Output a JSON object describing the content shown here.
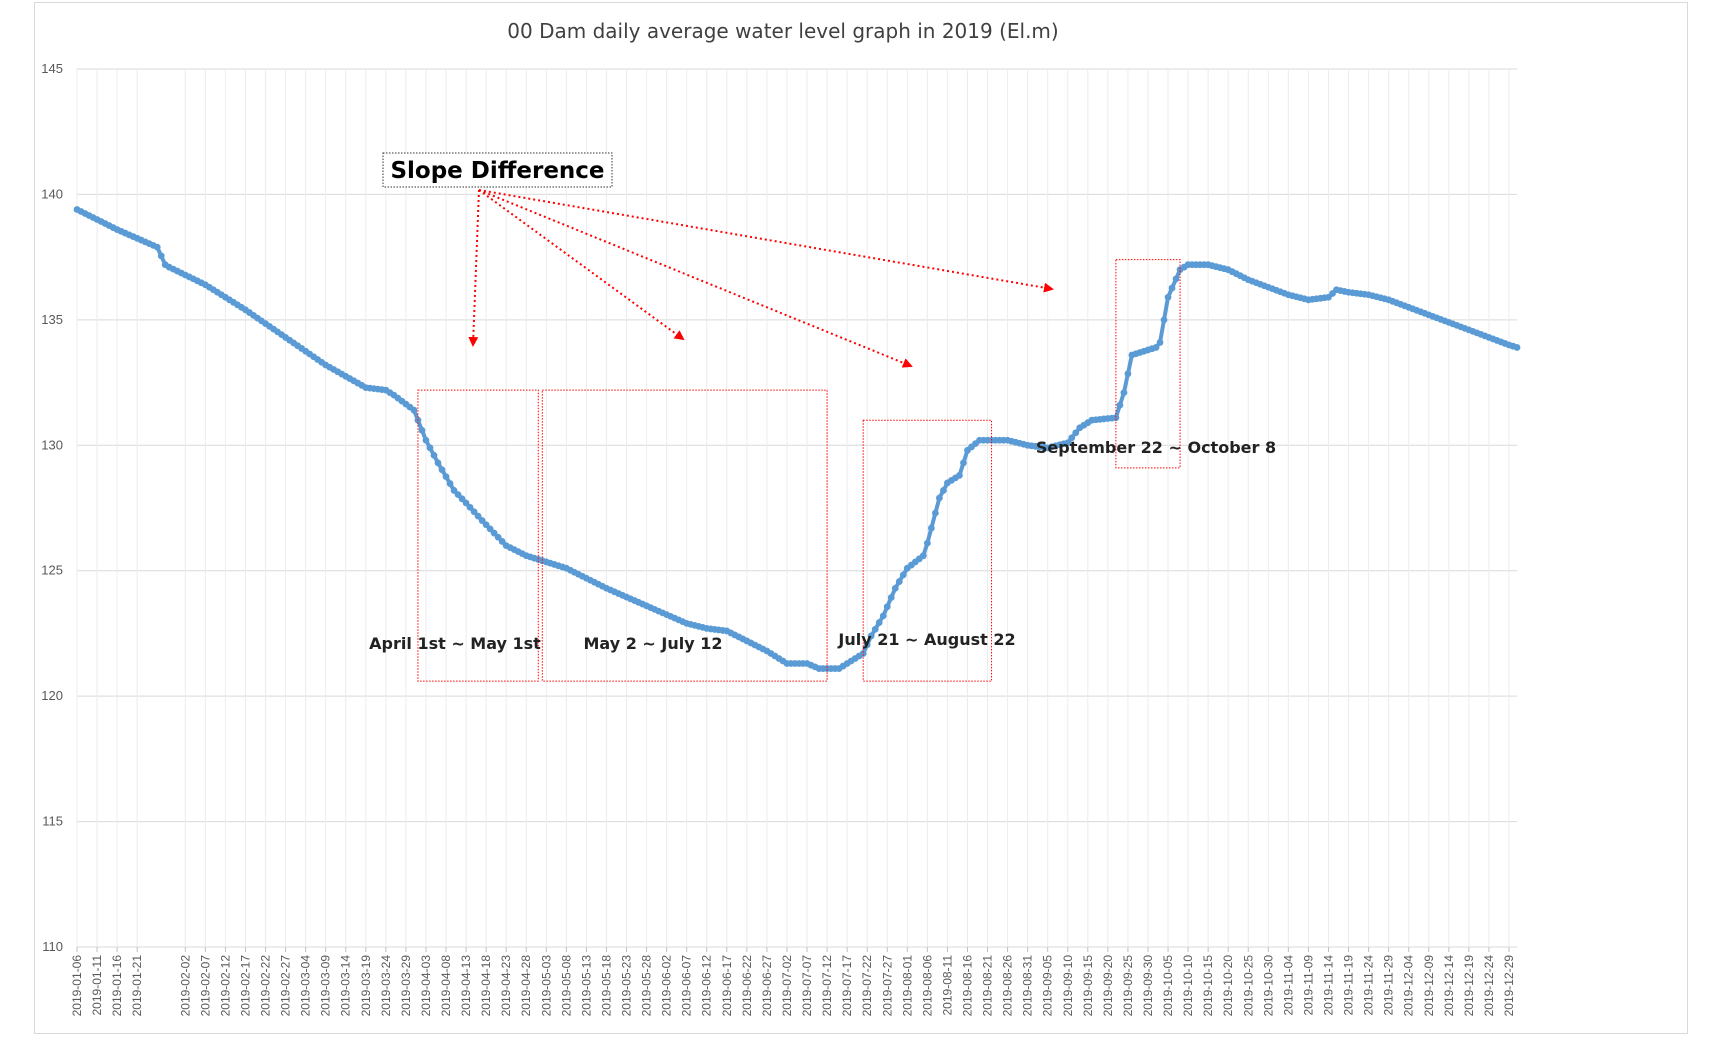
{
  "chart_data": {
    "type": "line",
    "title": "00 Dam daily average water level graph in 2019 (El.m)",
    "xlabel": "",
    "ylabel": "",
    "ylim": [
      110,
      145
    ],
    "yticks": [
      110,
      115,
      120,
      125,
      130,
      135,
      140,
      145
    ],
    "grid": "horizontal",
    "legend": "none",
    "line_color": "#5b9bd5",
    "annotation_color": "#ff0000",
    "xticks": [
      "2019-01-06",
      "2019-01-11",
      "2019-01-16",
      "2019-01-21",
      "2019-02-02",
      "2019-02-07",
      "2019-02-12",
      "2019-02-17",
      "2019-02-22",
      "2019-02-27",
      "2019-03-04",
      "2019-03-09",
      "2019-03-14",
      "2019-03-19",
      "2019-03-24",
      "2019-03-29",
      "2019-04-03",
      "2019-04-08",
      "2019-04-13",
      "2019-04-18",
      "2019-04-23",
      "2019-04-28",
      "2019-05-03",
      "2019-05-08",
      "2019-05-13",
      "2019-05-18",
      "2019-05-23",
      "2019-05-28",
      "2019-06-02",
      "2019-06-07",
      "2019-06-12",
      "2019-06-17",
      "2019-06-22",
      "2019-06-27",
      "2019-07-02",
      "2019-07-07",
      "2019-07-12",
      "2019-07-17",
      "2019-07-22",
      "2019-07-27",
      "2019-08-01",
      "2019-08-06",
      "2019-08-11",
      "2019-08-16",
      "2019-08-21",
      "2019-08-26",
      "2019-08-31",
      "2019-09-05",
      "2019-09-10",
      "2019-09-15",
      "2019-09-20",
      "2019-09-25",
      "2019-09-30",
      "2019-10-05",
      "2019-10-10",
      "2019-10-15",
      "2019-10-20",
      "2019-10-25",
      "2019-10-30",
      "2019-11-04",
      "2019-11-09",
      "2019-11-14",
      "2019-11-19",
      "2019-11-24",
      "2019-11-29",
      "2019-12-04",
      "2019-12-09",
      "2019-12-14",
      "2019-12-19",
      "2019-12-24",
      "2019-12-29"
    ],
    "series": [
      {
        "x": [
          "2019-01-06",
          "2019-01-16",
          "2019-01-26",
          "2019-01-28",
          "2019-01-29",
          "2019-02-07",
          "2019-02-17",
          "2019-02-27",
          "2019-03-09",
          "2019-03-19",
          "2019-03-24",
          "2019-03-26",
          "2019-03-31",
          "2019-04-03",
          "2019-04-06",
          "2019-04-10",
          "2019-04-13",
          "2019-04-17",
          "2019-04-23",
          "2019-04-28",
          "2019-05-02",
          "2019-05-08",
          "2019-05-18",
          "2019-05-28",
          "2019-06-07",
          "2019-06-12",
          "2019-06-17",
          "2019-06-22",
          "2019-06-27",
          "2019-07-02",
          "2019-07-07",
          "2019-07-10",
          "2019-07-12",
          "2019-07-15",
          "2019-07-18",
          "2019-07-21",
          "2019-07-23",
          "2019-07-26",
          "2019-07-29",
          "2019-08-01",
          "2019-08-05",
          "2019-08-06",
          "2019-08-09",
          "2019-08-11",
          "2019-08-14",
          "2019-08-16",
          "2019-08-19",
          "2019-08-22",
          "2019-08-26",
          "2019-08-31",
          "2019-09-05",
          "2019-09-10",
          "2019-09-13",
          "2019-09-16",
          "2019-09-22",
          "2019-09-24",
          "2019-09-26",
          "2019-09-30",
          "2019-10-02",
          "2019-10-03",
          "2019-10-05",
          "2019-10-08",
          "2019-10-10",
          "2019-10-15",
          "2019-10-20",
          "2019-10-25",
          "2019-10-30",
          "2019-11-04",
          "2019-11-09",
          "2019-11-14",
          "2019-11-16",
          "2019-11-19",
          "2019-11-24",
          "2019-11-29",
          "2019-12-04",
          "2019-12-09",
          "2019-12-14",
          "2019-12-19",
          "2019-12-24",
          "2019-12-29",
          "2019-12-31"
        ],
        "y": [
          139.4,
          138.6,
          137.9,
          137.2,
          137.1,
          136.4,
          135.4,
          134.3,
          133.2,
          132.3,
          132.2,
          132.0,
          131.4,
          130.2,
          129.3,
          128.2,
          127.7,
          127.0,
          126.0,
          125.6,
          125.4,
          125.1,
          124.3,
          123.6,
          122.9,
          122.7,
          122.6,
          122.2,
          121.8,
          121.3,
          121.3,
          121.1,
          121.1,
          121.1,
          121.4,
          121.7,
          122.4,
          123.2,
          124.3,
          125.1,
          125.6,
          126.1,
          127.9,
          128.5,
          128.8,
          129.8,
          130.2,
          130.2,
          130.2,
          130.0,
          129.9,
          130.1,
          130.7,
          131.0,
          131.1,
          132.1,
          133.6,
          133.8,
          133.9,
          134.1,
          135.9,
          137.0,
          137.2,
          137.2,
          137.0,
          136.6,
          136.3,
          136.0,
          135.8,
          135.9,
          136.2,
          136.1,
          136.0,
          135.8,
          135.5,
          135.2,
          134.9,
          134.6,
          134.3,
          134.0,
          133.9
        ]
      }
    ],
    "annotations": {
      "slope_label": "Slope Difference",
      "ranges": [
        {
          "label": "April 1st ~ May 1st",
          "start": "2019-04-01",
          "end": "2019-05-01",
          "ymin": 120.6,
          "ymax": 132.2
        },
        {
          "label": "May 2 ~ July 12",
          "start": "2019-05-02",
          "end": "2019-07-12",
          "ymin": 120.6,
          "ymax": 132.2
        },
        {
          "label": "July 21 ~ August 22",
          "start": "2019-07-21",
          "end": "2019-08-22",
          "ymin": 120.6,
          "ymax": 131.0
        },
        {
          "label": "September 22 ~ October 8",
          "start": "2019-09-22",
          "end": "2019-10-08",
          "ymin": 129.1,
          "ymax": 137.4
        }
      ]
    }
  }
}
